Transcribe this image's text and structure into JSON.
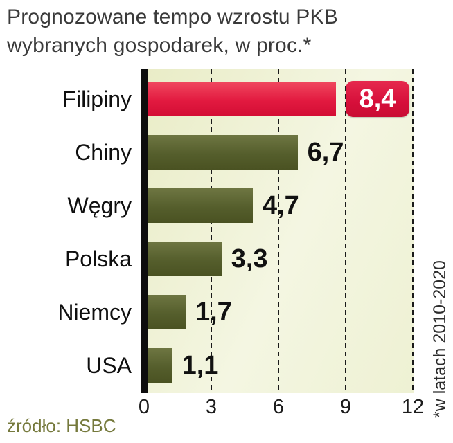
{
  "title": {
    "line1": "Prognozowane tempo wzrostu PKB",
    "line2": "wybranych gospodarek, w proc.*"
  },
  "chart_data": {
    "type": "bar",
    "orientation": "horizontal",
    "title": "Prognozowane tempo wzrostu PKB wybranych gospodarek, w proc.*",
    "categories": [
      "Filipiny",
      "Chiny",
      "Węgry",
      "Polska",
      "Niemcy",
      "USA"
    ],
    "values": [
      8.4,
      6.7,
      4.7,
      3.3,
      1.7,
      1.1
    ],
    "value_labels": [
      "8,4",
      "6,7",
      "4,7",
      "3,3",
      "1,7",
      "1,1"
    ],
    "highlight_index": 0,
    "xlim": [
      0,
      12
    ],
    "x_ticks": [
      "0",
      "3",
      "6",
      "9",
      "12"
    ],
    "grid": "dashed-vertical",
    "legend": "none",
    "bar_color": "#555e2c",
    "highlight_color": "#d60f3a",
    "note": "*w latach 2010-2020",
    "source": "źródło: HSBC"
  },
  "annotations": {
    "right_note": "*w latach 2010-2020",
    "source": "źródło: HSBC"
  },
  "colors": {
    "bar_olive": "#555e2c",
    "bar_red": "#d60f3a",
    "plot_bg": "#eef1d3",
    "axis": "#0d0d0d",
    "source_text": "#75793c"
  }
}
